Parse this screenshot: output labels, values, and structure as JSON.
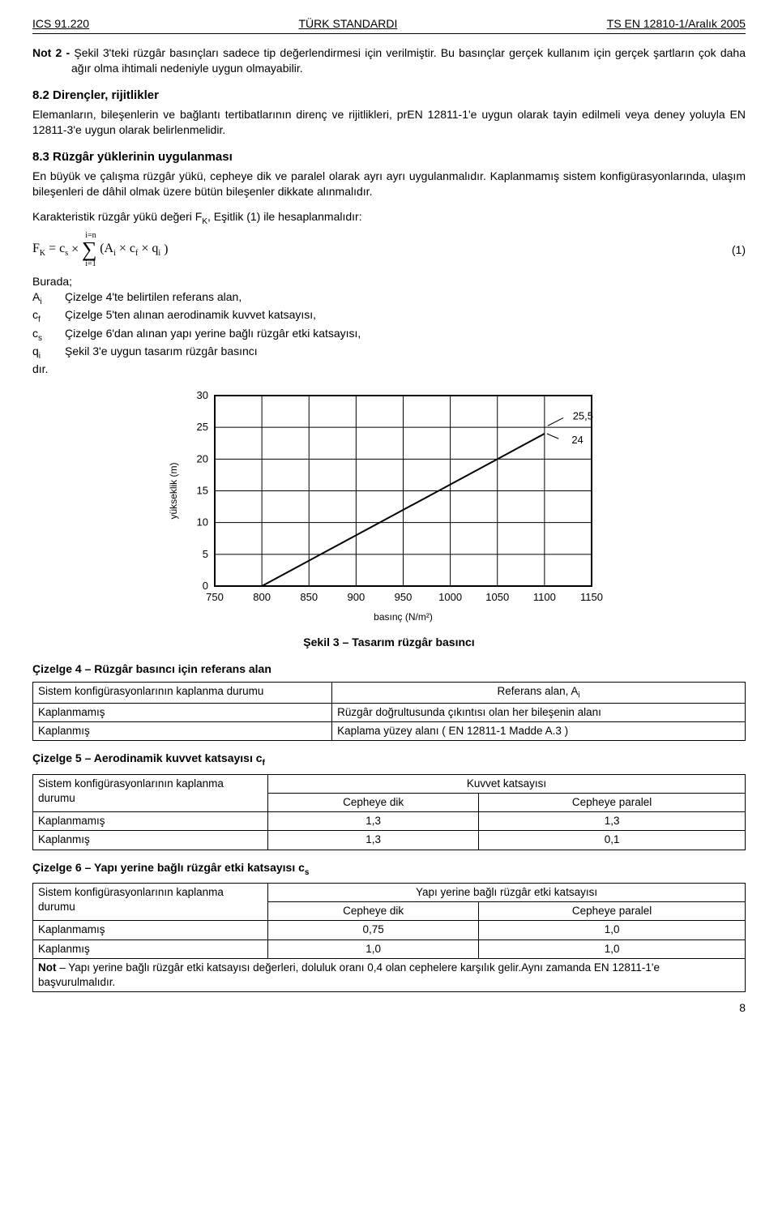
{
  "header": {
    "left": "ICS 91.220",
    "center": "TÜRK STANDARDI",
    "right": "TS EN 12810-1/Aralık 2005"
  },
  "note2": {
    "label": "Not 2 - ",
    "text": "Şekil 3'teki rüzgâr basınçları sadece tip değerlendirmesi için   verilmiştir. Bu basınçlar gerçek kullanım için gerçek şartların çok daha ağır olma ihtimali nedeniyle uygun olmayabilir."
  },
  "s82": {
    "title": "8.2   Dirençler, rijitlikler",
    "body": "Elemanların, bileşenlerin ve bağlantı tertibatlarının direnç ve rijitlikleri, prEN 12811-1'e uygun olarak tayin edilmeli veya deney yoluyla EN 12811-3'e uygun olarak belirlenmelidir."
  },
  "s83": {
    "title": "8.3   Rüzgâr yüklerinin uygulanması",
    "p1": "En büyük ve çalışma rüzgâr yükü, cepheye dik ve paralel olarak ayrı ayrı uygulanmalıdır. Kaplanmamış sistem konfigürasyonlarında, ulaşım bileşenleri de dâhil olmak üzere bütün bileşenler dikkate alınmalıdır.",
    "p2": "Karakteristik rüzgâr yükü değeri F",
    "p2s": "K",
    "p2c": ", Eşitlik (1) ile hesaplanmalıdır:"
  },
  "equation": {
    "lhs": "F",
    "lhs_sub": "K",
    "eq": " = c",
    "cs_sub": "s",
    "times": " × ",
    "sum_top": "i=n",
    "sum_bot": "i=1",
    "inner": "(A",
    "Ai_sub": "i",
    "x1": " × c",
    "cf_sub": "f",
    "x2": " × q",
    "qi_sub": "i",
    "close": ")",
    "num": "(1)"
  },
  "defs": {
    "lead": "Burada;",
    "rows": [
      {
        "sym": "A",
        "sub": "i",
        "txt": "Çizelge 4'te belirtilen referans alan,"
      },
      {
        "sym": "c",
        "sub": "f",
        "txt": "Çizelge 5'ten alınan aerodinamik kuvvet katsayısı,"
      },
      {
        "sym": "c",
        "sub": "s",
        "txt": "Çizelge 6'dan alınan yapı yerine bağlı rüzgâr etki katsayısı,"
      },
      {
        "sym": "q",
        "sub": "i",
        "txt": "Şekil 3'e uygun tasarım rüzgâr basıncı"
      }
    ],
    "tail": "dır."
  },
  "chart": {
    "type": "line",
    "xlabel": "basınç (N/m²)",
    "ylabel": "yükseklik (m)",
    "xlim": [
      750,
      1150
    ],
    "ylim": [
      0,
      30
    ],
    "xticks": [
      750,
      800,
      850,
      900,
      950,
      1000,
      1050,
      1100,
      1150
    ],
    "yticks": [
      0,
      5,
      10,
      15,
      20,
      25,
      30
    ],
    "annot1": "25,5",
    "annot2": "24",
    "line": [
      {
        "x": 800,
        "y": 0
      },
      {
        "x": 1100,
        "y": 24
      }
    ],
    "axis_color": "#000000",
    "grid_color": "#000000",
    "line_color": "#000000",
    "background": "#ffffff",
    "tick_fontsize": 13,
    "label_fontsize": 12,
    "line_width": 2
  },
  "chart_caption": "Şekil 3 – Tasarım rüzgâr basıncı",
  "tbl4": {
    "caption": "Çizelge 4 – Rüzgâr basıncı için referans alan",
    "h1": "Sistem konfigürasyonlarının kaplanma durumu",
    "h2": "Referans alan, A",
    "h2sub": "i",
    "r1c1": "Kaplanmamış",
    "r1c2": "Rüzgâr doğrultusunda çıkıntısı olan her bileşenin alanı",
    "r2c1": "Kaplanmış",
    "r2c2": "Kaplama yüzey alanı ( EN 12811-1 Madde A.3 )"
  },
  "tbl5": {
    "caption": "Çizelge 5 – Aerodinamik kuvvet katsayısı c",
    "caption_sub": "f",
    "h1": "Sistem konfigürasyonlarının kaplanma durumu",
    "h2": "Kuvvet katsayısı",
    "sh1": "Cepheye dik",
    "sh2": "Cepheye paralel",
    "r1": [
      "Kaplanmamış",
      "1,3",
      "1,3"
    ],
    "r2": [
      "Kaplanmış",
      "1,3",
      "0,1"
    ]
  },
  "tbl6": {
    "caption": "Çizelge 6 – Yapı yerine bağlı rüzgâr etki katsayısı c",
    "caption_sub": "s",
    "h1": "Sistem konfigürasyonlarının kaplanma durumu",
    "h2": "Yapı yerine bağlı rüzgâr etki katsayısı",
    "sh1": "Cepheye dik",
    "sh2": "Cepheye paralel",
    "r1": [
      "Kaplanmamış",
      "0,75",
      "1,0"
    ],
    "r2": [
      "Kaplanmış",
      "1,0",
      "1,0"
    ],
    "note_label": "Not",
    "note": " – Yapı yerine bağlı rüzgâr etki katsayısı değerleri, doluluk oranı 0,4 olan cephelere karşılık gelir.Aynı zamanda EN 12811-1'e başvurulmalıdır."
  },
  "pagenum": "8"
}
